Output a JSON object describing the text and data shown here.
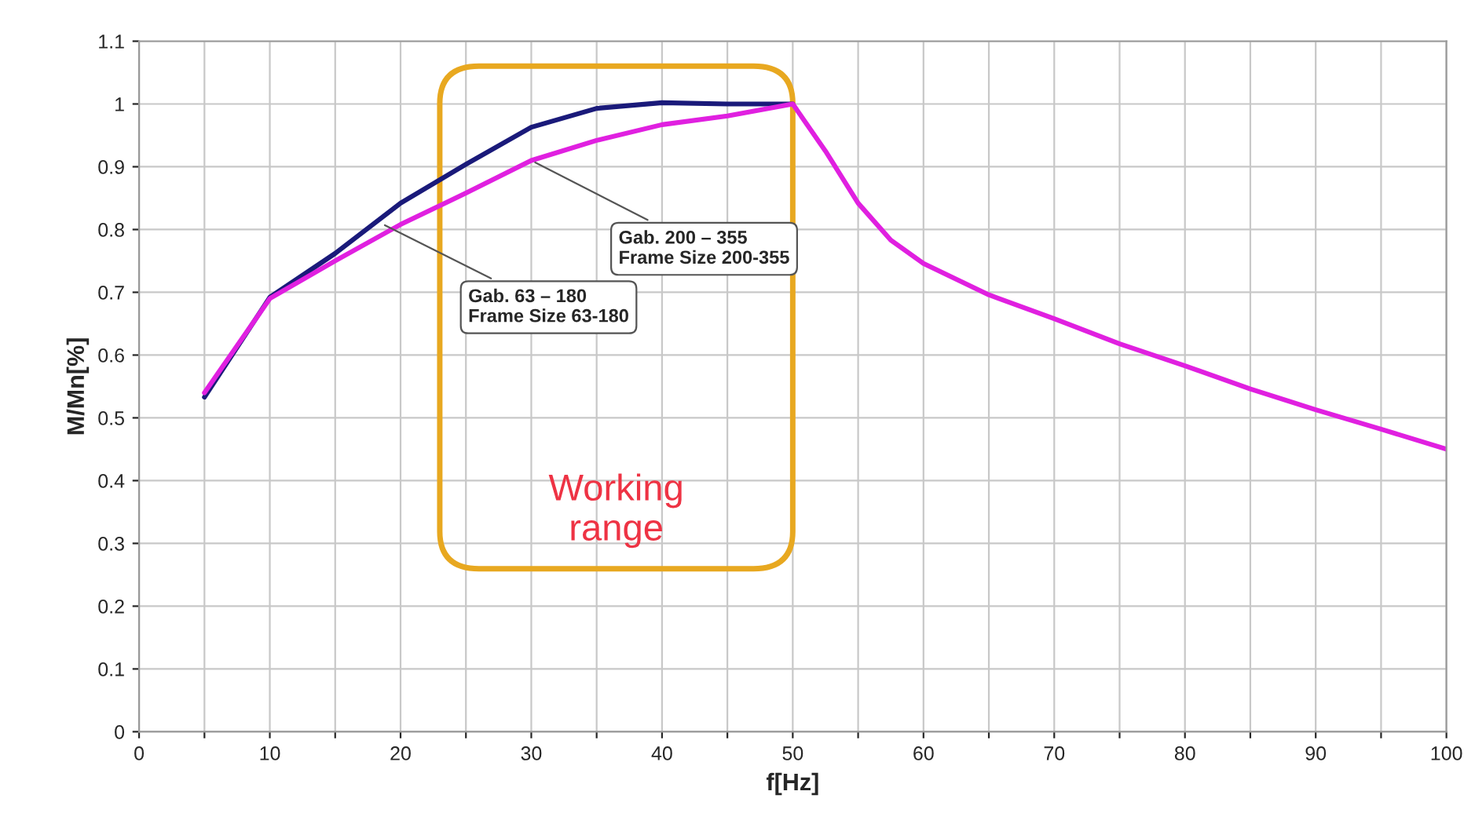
{
  "chart_data": {
    "type": "line",
    "xlabel": "f[Hz]",
    "ylabel": "M/Mn[%]",
    "xlim": [
      0,
      100
    ],
    "ylim": [
      0,
      1.1
    ],
    "xticks": [
      0,
      {
        "value": 5,
        "label": null
      },
      10,
      {
        "value": 15,
        "label": null
      },
      20,
      {
        "value": 25,
        "label": null
      },
      30,
      {
        "value": 35,
        "label": null
      },
      40,
      {
        "value": 45,
        "label": null
      },
      50,
      {
        "value": 55,
        "label": null
      },
      60,
      {
        "value": 65,
        "label": null
      },
      70,
      {
        "value": 75,
        "label": null
      },
      80,
      {
        "value": 85,
        "label": null
      },
      90,
      {
        "value": 95,
        "label": null
      },
      100
    ],
    "yticks": [
      0,
      0.1,
      0.2,
      0.3,
      0.4,
      0.5,
      0.6,
      0.7,
      0.8,
      0.9,
      1,
      1.1
    ],
    "grid": true,
    "marker": "none",
    "line_style": "solid",
    "series": [
      {
        "color": "#1a1a7a",
        "x": [
          5,
          10,
          15,
          20,
          25,
          30,
          35,
          40,
          45,
          50
        ],
        "values": [
          0.533,
          0.692,
          0.762,
          0.842,
          0.904,
          0.963,
          0.993,
          1.002,
          1.0,
          1.0
        ]
      },
      {
        "color": "#e020e0",
        "x": [
          5,
          10,
          15,
          20,
          25,
          30,
          35,
          40,
          45,
          50,
          52.5,
          55,
          57.5,
          60,
          65,
          70,
          75,
          80,
          85,
          90,
          95,
          100
        ],
        "values": [
          0.54,
          0.69,
          0.75,
          0.808,
          0.858,
          0.91,
          0.942,
          0.967,
          0.981,
          1.0,
          0.925,
          0.842,
          0.783,
          0.746,
          0.696,
          0.658,
          0.618,
          0.583,
          0.546,
          0.513,
          0.482,
          0.45
        ]
      }
    ],
    "annotations": [
      {
        "text": "Gab. 63 – 180\nFrame Size 63-180",
        "x": 18.5,
        "y": 0.81
      },
      {
        "text": "Gab. 200 – 355\nFrame Size 200-355",
        "x": 30,
        "y": 0.91
      },
      "Working\nrange"
    ]
  }
}
